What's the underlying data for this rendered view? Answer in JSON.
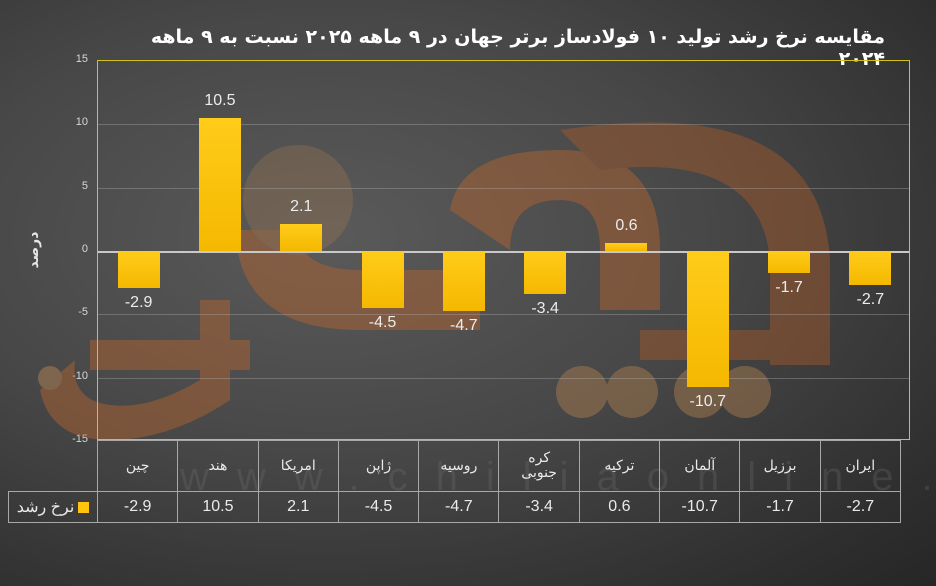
{
  "title": "مقایسه نرخ رشد تولید ۱۰ فولادساز برتر جهان در ۹ ماهه ۲۰۲۵ نسبت به ۹ ماهه ۲۰۲۴",
  "y_axis": {
    "label": "درصد",
    "ticks": [
      "15",
      "10",
      "5",
      "0",
      "-5",
      "-10",
      "-15"
    ]
  },
  "legend": {
    "label": "نرخ رشد",
    "color": "#FFC20E"
  },
  "categories": [
    "چین",
    "هند",
    "امریکا",
    "ژاپن",
    "روسیه",
    "کره جنوبی",
    "ترکیه",
    "آلمان",
    "برزیل",
    "ایران"
  ],
  "category_lines": [
    [
      "چین"
    ],
    [
      "هند"
    ],
    [
      "امریکا"
    ],
    [
      "ژاپن"
    ],
    [
      "روسیه"
    ],
    [
      "کره",
      "جنوبی"
    ],
    [
      "ترکیه"
    ],
    [
      "آلمان"
    ],
    [
      "برزیل"
    ],
    [
      "ایران"
    ]
  ],
  "value_labels": [
    "-2.9",
    "10.5",
    "2.1",
    "-4.5",
    "-4.7",
    "-3.4",
    "0.6",
    "-10.7",
    "-1.7",
    "-2.7"
  ],
  "watermark": "www.chiliaonline.com",
  "chart_data": {
    "type": "bar",
    "title": "مقایسه نرخ رشد تولید ۱۰ فولادساز برتر جهان در ۹ ماهه ۲۰۲۵ نسبت به ۹ ماهه ۲۰۲۴",
    "categories": [
      "چین",
      "هند",
      "امریکا",
      "ژاپن",
      "روسیه",
      "کره جنوبی",
      "ترکیه",
      "آلمان",
      "برزیل",
      "ایران"
    ],
    "series": [
      {
        "name": "نرخ رشد",
        "color": "#FFC20E",
        "values": [
          -2.9,
          10.5,
          2.1,
          -4.5,
          -4.7,
          -3.4,
          0.6,
          -10.7,
          -1.7,
          -2.7
        ]
      }
    ],
    "xlabel": "",
    "ylabel": "درصد",
    "ylim": [
      -15,
      15
    ],
    "yticks": [
      -15,
      -10,
      -5,
      0,
      5,
      10,
      15
    ],
    "grid": true,
    "data_labels": true,
    "data_table": true,
    "legend_position": "data-table"
  }
}
